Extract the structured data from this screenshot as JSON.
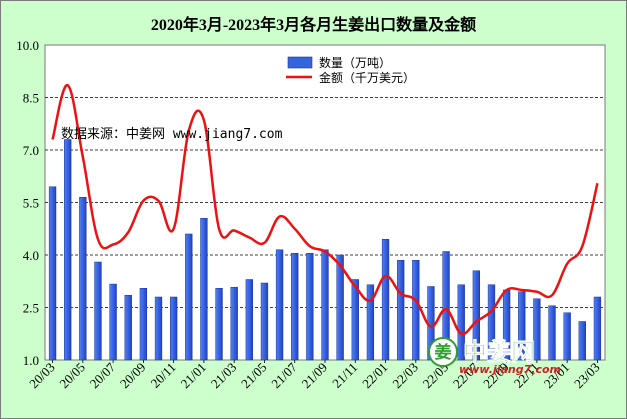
{
  "chart_data": {
    "type": "bar+line",
    "title": "2020年3月-2023年3月各月生姜出口数量及金额",
    "ylim": [
      1.0,
      10.0
    ],
    "yticks": [
      "1.0",
      "2.5",
      "4.0",
      "5.5",
      "7.0",
      "8.5",
      "10.0"
    ],
    "grid": "horizontal dashed",
    "legend_position": "top-right",
    "categories": [
      "20/03",
      "20/04",
      "20/05",
      "20/06",
      "20/07",
      "20/08",
      "20/09",
      "20/10",
      "20/11",
      "20/12",
      "21/01",
      "21/02",
      "21/03",
      "21/04",
      "21/05",
      "21/06",
      "21/07",
      "21/08",
      "21/09",
      "21/10",
      "21/11",
      "21/12",
      "22/01",
      "22/02",
      "22/03",
      "22/04",
      "22/05",
      "22/06",
      "22/07",
      "22/08",
      "22/09",
      "22/10",
      "22/11",
      "22/12",
      "23/01",
      "23/02",
      "23/03"
    ],
    "xtick_labels": [
      "20/03",
      "20/05",
      "20/07",
      "20/09",
      "20/11",
      "21/01",
      "21/03",
      "21/05",
      "21/07",
      "21/09",
      "21/11",
      "22/01",
      "22/03",
      "22/05",
      "22/07",
      "22/09",
      "22/11",
      "23/01",
      "23/03"
    ],
    "series": [
      {
        "name": "数量（万吨）",
        "type": "bar",
        "color": "#3366dd",
        "values": [
          5.95,
          7.3,
          5.65,
          3.8,
          3.17,
          2.85,
          3.05,
          2.8,
          2.8,
          4.6,
          5.05,
          3.05,
          3.08,
          3.3,
          3.2,
          4.15,
          4.05,
          4.05,
          4.15,
          4.0,
          3.3,
          3.15,
          4.45,
          3.85,
          3.85,
          3.1,
          4.1,
          3.15,
          3.55,
          3.15,
          3.0,
          2.95,
          2.75,
          2.55,
          2.35,
          2.1,
          2.8
        ]
      },
      {
        "name": "金额（千万美元）",
        "type": "line",
        "color": "#ee1111",
        "values": [
          7.3,
          8.85,
          6.8,
          4.45,
          4.3,
          4.65,
          5.55,
          5.55,
          4.75,
          7.55,
          7.85,
          4.75,
          4.7,
          4.5,
          4.35,
          5.1,
          4.75,
          4.25,
          4.1,
          3.7,
          3.1,
          2.7,
          3.4,
          2.9,
          2.7,
          1.95,
          2.45,
          1.75,
          2.1,
          2.4,
          3.0,
          3.0,
          2.95,
          2.85,
          3.75,
          4.25,
          6.05
        ]
      }
    ]
  },
  "source_note": "数据来源：中姜网 www.jiang7.com",
  "watermark": {
    "logo_char": "姜",
    "name": "中姜网",
    "url": "www.jiang7.com"
  }
}
